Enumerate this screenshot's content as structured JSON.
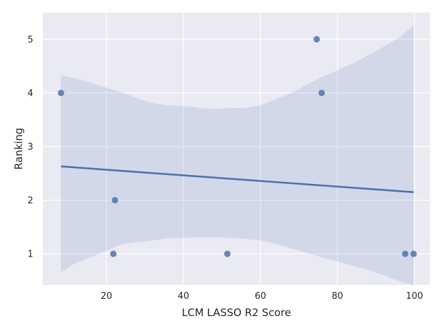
{
  "chart_data": {
    "type": "scatter",
    "title": "",
    "xlabel": "LCM LASSO R2 Score",
    "ylabel": "Ranking",
    "xlim": [
      3.5,
      104
    ],
    "ylim": [
      0.42,
      5.5
    ],
    "xticks": [
      20,
      40,
      60,
      80,
      100
    ],
    "yticks": [
      1,
      2,
      3,
      4,
      5
    ],
    "grid": true,
    "background": "#EAEAF2",
    "grid_color": "#FFFFFF",
    "point_color": "#4C72B0",
    "line_color": "#4C72B0",
    "band_color": "#4C72B0",
    "points": [
      {
        "x": 8.2,
        "y": 4
      },
      {
        "x": 21.8,
        "y": 1
      },
      {
        "x": 22.2,
        "y": 2
      },
      {
        "x": 51.4,
        "y": 1
      },
      {
        "x": 74.6,
        "y": 5
      },
      {
        "x": 75.9,
        "y": 4
      },
      {
        "x": 97.6,
        "y": 1
      },
      {
        "x": 99.8,
        "y": 1
      }
    ],
    "regression_line": [
      {
        "x": 8.2,
        "y": 2.63
      },
      {
        "x": 99.8,
        "y": 2.15
      }
    ],
    "confidence_band": [
      {
        "x": 8.2,
        "lo": 0.66,
        "hi": 4.33
      },
      {
        "x": 12,
        "lo": 0.83,
        "hi": 4.27
      },
      {
        "x": 16,
        "lo": 0.94,
        "hi": 4.19
      },
      {
        "x": 20,
        "lo": 1.06,
        "hi": 4.1
      },
      {
        "x": 24,
        "lo": 1.18,
        "hi": 4.01
      },
      {
        "x": 28,
        "lo": 1.22,
        "hi": 3.9
      },
      {
        "x": 32,
        "lo": 1.25,
        "hi": 3.81
      },
      {
        "x": 36,
        "lo": 1.29,
        "hi": 3.77
      },
      {
        "x": 40,
        "lo": 1.3,
        "hi": 3.76
      },
      {
        "x": 44,
        "lo": 1.31,
        "hi": 3.72
      },
      {
        "x": 48,
        "lo": 1.31,
        "hi": 3.7
      },
      {
        "x": 52,
        "lo": 1.3,
        "hi": 3.72
      },
      {
        "x": 56,
        "lo": 1.28,
        "hi": 3.72
      },
      {
        "x": 60,
        "lo": 1.25,
        "hi": 3.77
      },
      {
        "x": 64,
        "lo": 1.19,
        "hi": 3.88
      },
      {
        "x": 68,
        "lo": 1.1,
        "hi": 4.0
      },
      {
        "x": 72,
        "lo": 1.02,
        "hi": 4.15
      },
      {
        "x": 76,
        "lo": 0.93,
        "hi": 4.3
      },
      {
        "x": 80,
        "lo": 0.86,
        "hi": 4.42
      },
      {
        "x": 84,
        "lo": 0.78,
        "hi": 4.55
      },
      {
        "x": 88,
        "lo": 0.7,
        "hi": 4.7
      },
      {
        "x": 92,
        "lo": 0.6,
        "hi": 4.86
      },
      {
        "x": 96,
        "lo": 0.49,
        "hi": 5.03
      },
      {
        "x": 99.8,
        "lo": 0.42,
        "hi": 5.26
      }
    ]
  }
}
